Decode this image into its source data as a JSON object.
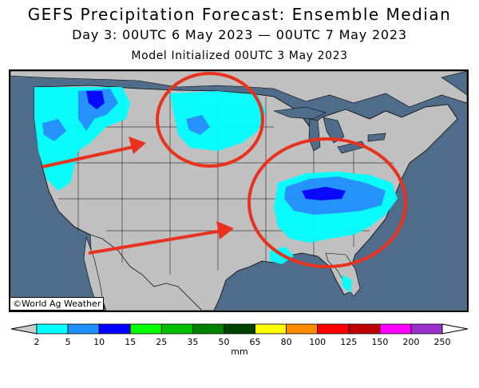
{
  "header": {
    "title": "GEFS Precipitation Forecast: Ensemble Median",
    "subtitle": "Day 3: 00UTC 6 May 2023 — 00UTC 7 May 2023",
    "init": "Model Initialized 00UTC 3 May 2023"
  },
  "credit": "©World Ag Weather",
  "legend": {
    "units": "mm",
    "ticks": [
      "2",
      "5",
      "10",
      "15",
      "25",
      "35",
      "50",
      "65",
      "80",
      "100",
      "125",
      "150",
      "200",
      "250"
    ],
    "colors": [
      "#00ffff",
      "#1e90ff",
      "#0000ff",
      "#00ff00",
      "#00c000",
      "#008000",
      "#004000",
      "#ffff00",
      "#ff8c00",
      "#ff0000",
      "#c00000",
      "#ff00ff",
      "#9932cc"
    ],
    "low_color": "#cccccc",
    "high_color": "#ffffff"
  },
  "colors": {
    "ocean": "#4f6d8b",
    "land": "#c0c0c0",
    "precip_light": "#00ffff",
    "precip_medium": "#1e90ff",
    "precip_heavy": "#0000ff",
    "annotation": "#e8321e"
  }
}
